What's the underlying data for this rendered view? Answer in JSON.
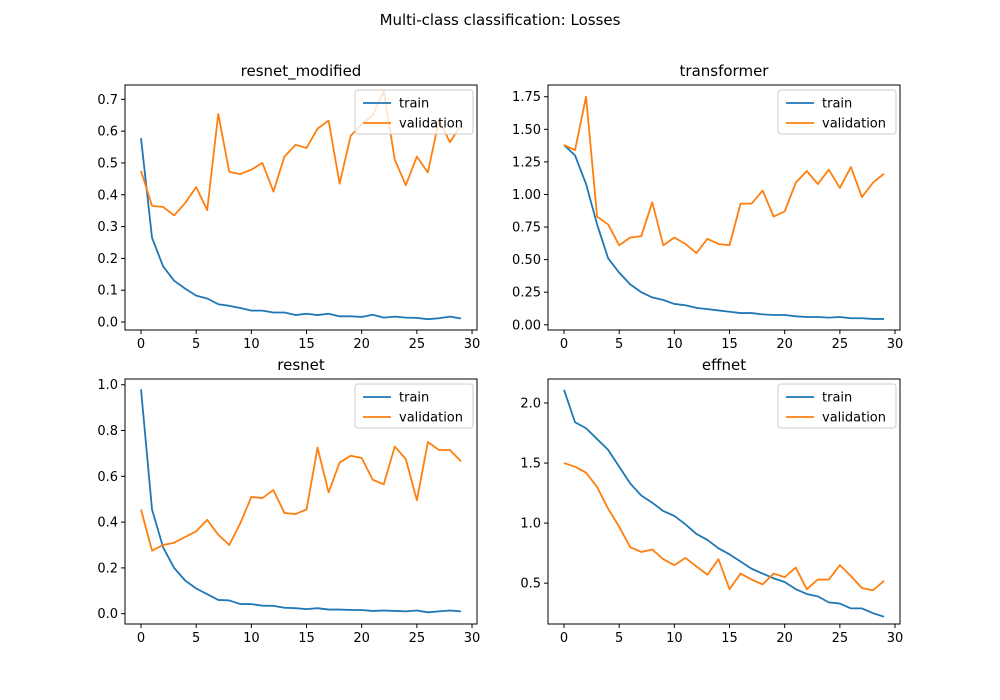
{
  "figure": {
    "suptitle": "Multi-class classification: Losses"
  },
  "legend": {
    "train": "train",
    "validation": "validation"
  },
  "colors": {
    "train": "#1f77b4",
    "validation": "#ff7f0e"
  },
  "chart_data": [
    {
      "type": "line",
      "title": "resnet_modified",
      "xlabel": "",
      "ylabel": "",
      "xlim": [
        -1.45,
        30.45
      ],
      "ylim": [
        -0.025,
        0.745
      ],
      "xticks": [
        0,
        5,
        10,
        15,
        20,
        25,
        30
      ],
      "yticks": [
        0.0,
        0.1,
        0.2,
        0.3,
        0.4,
        0.5,
        0.6,
        0.7
      ],
      "ytick_labels": [
        "0.0",
        "0.1",
        "0.2",
        "0.3",
        "0.4",
        "0.5",
        "0.6",
        "0.7"
      ],
      "legend": "upper right",
      "x": [
        0,
        1,
        2,
        3,
        4,
        5,
        6,
        7,
        8,
        9,
        10,
        11,
        12,
        13,
        14,
        15,
        16,
        17,
        18,
        19,
        20,
        21,
        22,
        23,
        24,
        25,
        26,
        27,
        28,
        29
      ],
      "series": [
        {
          "name": "train",
          "values": [
            0.578,
            0.265,
            0.175,
            0.13,
            0.105,
            0.083,
            0.074,
            0.056,
            0.051,
            0.044,
            0.036,
            0.036,
            0.03,
            0.03,
            0.022,
            0.026,
            0.022,
            0.026,
            0.018,
            0.018,
            0.016,
            0.023,
            0.014,
            0.017,
            0.014,
            0.013,
            0.009,
            0.012,
            0.017,
            0.011
          ]
        },
        {
          "name": "validation",
          "values": [
            0.475,
            0.365,
            0.362,
            0.335,
            0.374,
            0.424,
            0.352,
            0.654,
            0.472,
            0.465,
            0.479,
            0.5,
            0.41,
            0.52,
            0.557,
            0.547,
            0.608,
            0.633,
            0.435,
            0.585,
            0.622,
            0.65,
            0.725,
            0.51,
            0.43,
            0.52,
            0.47,
            0.635,
            0.565,
            0.62
          ]
        }
      ]
    },
    {
      "type": "line",
      "title": "transformer",
      "xlabel": "",
      "ylabel": "",
      "xlim": [
        -1.45,
        30.45
      ],
      "ylim": [
        -0.04,
        1.84
      ],
      "xticks": [
        0,
        5,
        10,
        15,
        20,
        25,
        30
      ],
      "yticks": [
        0.0,
        0.25,
        0.5,
        0.75,
        1.0,
        1.25,
        1.5,
        1.75
      ],
      "ytick_labels": [
        "0.00",
        "0.25",
        "0.50",
        "0.75",
        "1.00",
        "1.25",
        "1.50",
        "1.75"
      ],
      "legend": "upper right",
      "x": [
        0,
        1,
        2,
        3,
        4,
        5,
        6,
        7,
        8,
        9,
        10,
        11,
        12,
        13,
        14,
        15,
        16,
        17,
        18,
        19,
        20,
        21,
        22,
        23,
        24,
        25,
        26,
        27,
        28,
        29
      ],
      "series": [
        {
          "name": "train",
          "values": [
            1.38,
            1.3,
            1.08,
            0.77,
            0.51,
            0.4,
            0.31,
            0.25,
            0.21,
            0.19,
            0.16,
            0.15,
            0.13,
            0.12,
            0.11,
            0.1,
            0.09,
            0.09,
            0.08,
            0.075,
            0.075,
            0.065,
            0.06,
            0.06,
            0.055,
            0.06,
            0.05,
            0.05,
            0.045,
            0.045
          ]
        },
        {
          "name": "validation",
          "values": [
            1.38,
            1.34,
            1.75,
            0.83,
            0.77,
            0.61,
            0.67,
            0.68,
            0.94,
            0.61,
            0.67,
            0.62,
            0.55,
            0.66,
            0.62,
            0.61,
            0.93,
            0.93,
            1.03,
            0.83,
            0.87,
            1.09,
            1.18,
            1.08,
            1.19,
            1.05,
            1.21,
            0.98,
            1.09,
            1.16
          ]
        }
      ]
    },
    {
      "type": "line",
      "title": "resnet",
      "xlabel": "",
      "ylabel": "",
      "xlim": [
        -1.45,
        30.45
      ],
      "ylim": [
        -0.045,
        1.025
      ],
      "xticks": [
        0,
        5,
        10,
        15,
        20,
        25,
        30
      ],
      "yticks": [
        0.0,
        0.2,
        0.4,
        0.6,
        0.8,
        1.0
      ],
      "ytick_labels": [
        "0.0",
        "0.2",
        "0.4",
        "0.6",
        "0.8",
        "1.0"
      ],
      "legend": "upper right",
      "x": [
        0,
        1,
        2,
        3,
        4,
        5,
        6,
        7,
        8,
        9,
        10,
        11,
        12,
        13,
        14,
        15,
        16,
        17,
        18,
        19,
        20,
        21,
        22,
        23,
        24,
        25,
        26,
        27,
        28,
        29
      ],
      "series": [
        {
          "name": "train",
          "values": [
            0.98,
            0.455,
            0.29,
            0.2,
            0.145,
            0.11,
            0.085,
            0.06,
            0.058,
            0.042,
            0.042,
            0.035,
            0.034,
            0.026,
            0.024,
            0.02,
            0.024,
            0.018,
            0.018,
            0.016,
            0.016,
            0.012,
            0.014,
            0.012,
            0.01,
            0.014,
            0.006,
            0.01,
            0.014,
            0.01
          ]
        },
        {
          "name": "validation",
          "values": [
            0.455,
            0.275,
            0.3,
            0.31,
            0.335,
            0.36,
            0.41,
            0.345,
            0.3,
            0.395,
            0.51,
            0.505,
            0.54,
            0.44,
            0.435,
            0.455,
            0.725,
            0.53,
            0.66,
            0.69,
            0.68,
            0.585,
            0.565,
            0.73,
            0.675,
            0.495,
            0.75,
            0.715,
            0.715,
            0.665
          ]
        }
      ]
    },
    {
      "type": "line",
      "title": "effnet",
      "xlabel": "",
      "ylabel": "",
      "xlim": [
        -1.45,
        30.45
      ],
      "ylim": [
        0.16,
        2.2
      ],
      "xticks": [
        0,
        5,
        10,
        15,
        20,
        25,
        30
      ],
      "yticks": [
        0.5,
        1.0,
        1.5,
        2.0
      ],
      "ytick_labels": [
        "0.5",
        "1.0",
        "1.5",
        "2.0"
      ],
      "legend": "upper right",
      "x": [
        0,
        1,
        2,
        3,
        4,
        5,
        6,
        7,
        8,
        9,
        10,
        11,
        12,
        13,
        14,
        15,
        16,
        17,
        18,
        19,
        20,
        21,
        22,
        23,
        24,
        25,
        26,
        27,
        28,
        29
      ],
      "series": [
        {
          "name": "train",
          "values": [
            2.11,
            1.84,
            1.79,
            1.7,
            1.61,
            1.47,
            1.33,
            1.23,
            1.17,
            1.1,
            1.06,
            0.99,
            0.91,
            0.86,
            0.79,
            0.74,
            0.68,
            0.62,
            0.58,
            0.54,
            0.51,
            0.45,
            0.41,
            0.39,
            0.34,
            0.33,
            0.29,
            0.29,
            0.25,
            0.22
          ]
        },
        {
          "name": "validation",
          "values": [
            1.5,
            1.47,
            1.42,
            1.3,
            1.12,
            0.97,
            0.8,
            0.76,
            0.78,
            0.7,
            0.65,
            0.71,
            0.64,
            0.57,
            0.7,
            0.45,
            0.58,
            0.53,
            0.49,
            0.58,
            0.55,
            0.63,
            0.45,
            0.53,
            0.53,
            0.65,
            0.56,
            0.46,
            0.44,
            0.52
          ]
        }
      ]
    }
  ]
}
